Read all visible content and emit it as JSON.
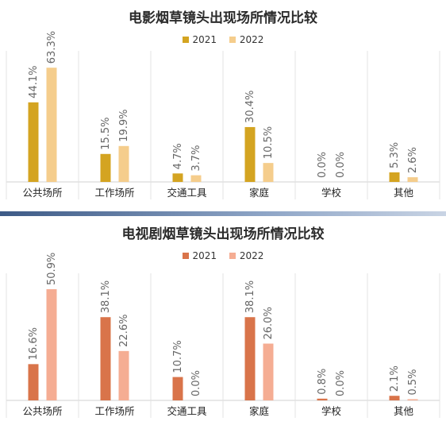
{
  "chart_data": [
    {
      "type": "bar",
      "title": "电影烟草镜头出现场所情况比较",
      "categories": [
        "公共场所",
        "工作场所",
        "交通工具",
        "家庭",
        "学校",
        "其他"
      ],
      "series": [
        {
          "name": "2021",
          "color": "#d4a421",
          "values": [
            44.1,
            15.5,
            4.7,
            30.4,
            0.0,
            5.3
          ],
          "labels": [
            "44.1%",
            "15.5%",
            "4.7%",
            "30.4%",
            "0.0%",
            "5.3%"
          ]
        },
        {
          "name": "2022",
          "color": "#f5cd8c",
          "values": [
            63.3,
            19.9,
            3.7,
            10.5,
            0.0,
            2.6
          ],
          "labels": [
            "63.3%",
            "19.9%",
            "3.7%",
            "10.5%",
            "0.0%",
            "2.6%"
          ]
        }
      ],
      "xlabel": "",
      "ylabel": "",
      "ylim": [
        0,
        70
      ],
      "grid": false,
      "legend_position": "top"
    },
    {
      "type": "bar",
      "title": "电视剧烟草镜头出现场所情况比较",
      "categories": [
        "公共场所",
        "工作场所",
        "交通工具",
        "家庭",
        "学校",
        "其他"
      ],
      "series": [
        {
          "name": "2021",
          "color": "#d9744a",
          "values": [
            16.6,
            38.1,
            10.7,
            38.1,
            0.8,
            2.1
          ],
          "labels": [
            "16.6%",
            "38.1%",
            "10.7%",
            "38.1%",
            "0.8%",
            "2.1%"
          ]
        },
        {
          "name": "2022",
          "color": "#f5ad93",
          "values": [
            50.9,
            22.6,
            0.0,
            26.0,
            0.0,
            0.5
          ],
          "labels": [
            "50.9%",
            "22.6%",
            "0.0%",
            "26.0%",
            "0.0%",
            "0.5%"
          ]
        }
      ],
      "xlabel": "",
      "ylabel": "",
      "ylim": [
        0,
        56
      ],
      "grid": false,
      "legend_position": "top"
    }
  ]
}
